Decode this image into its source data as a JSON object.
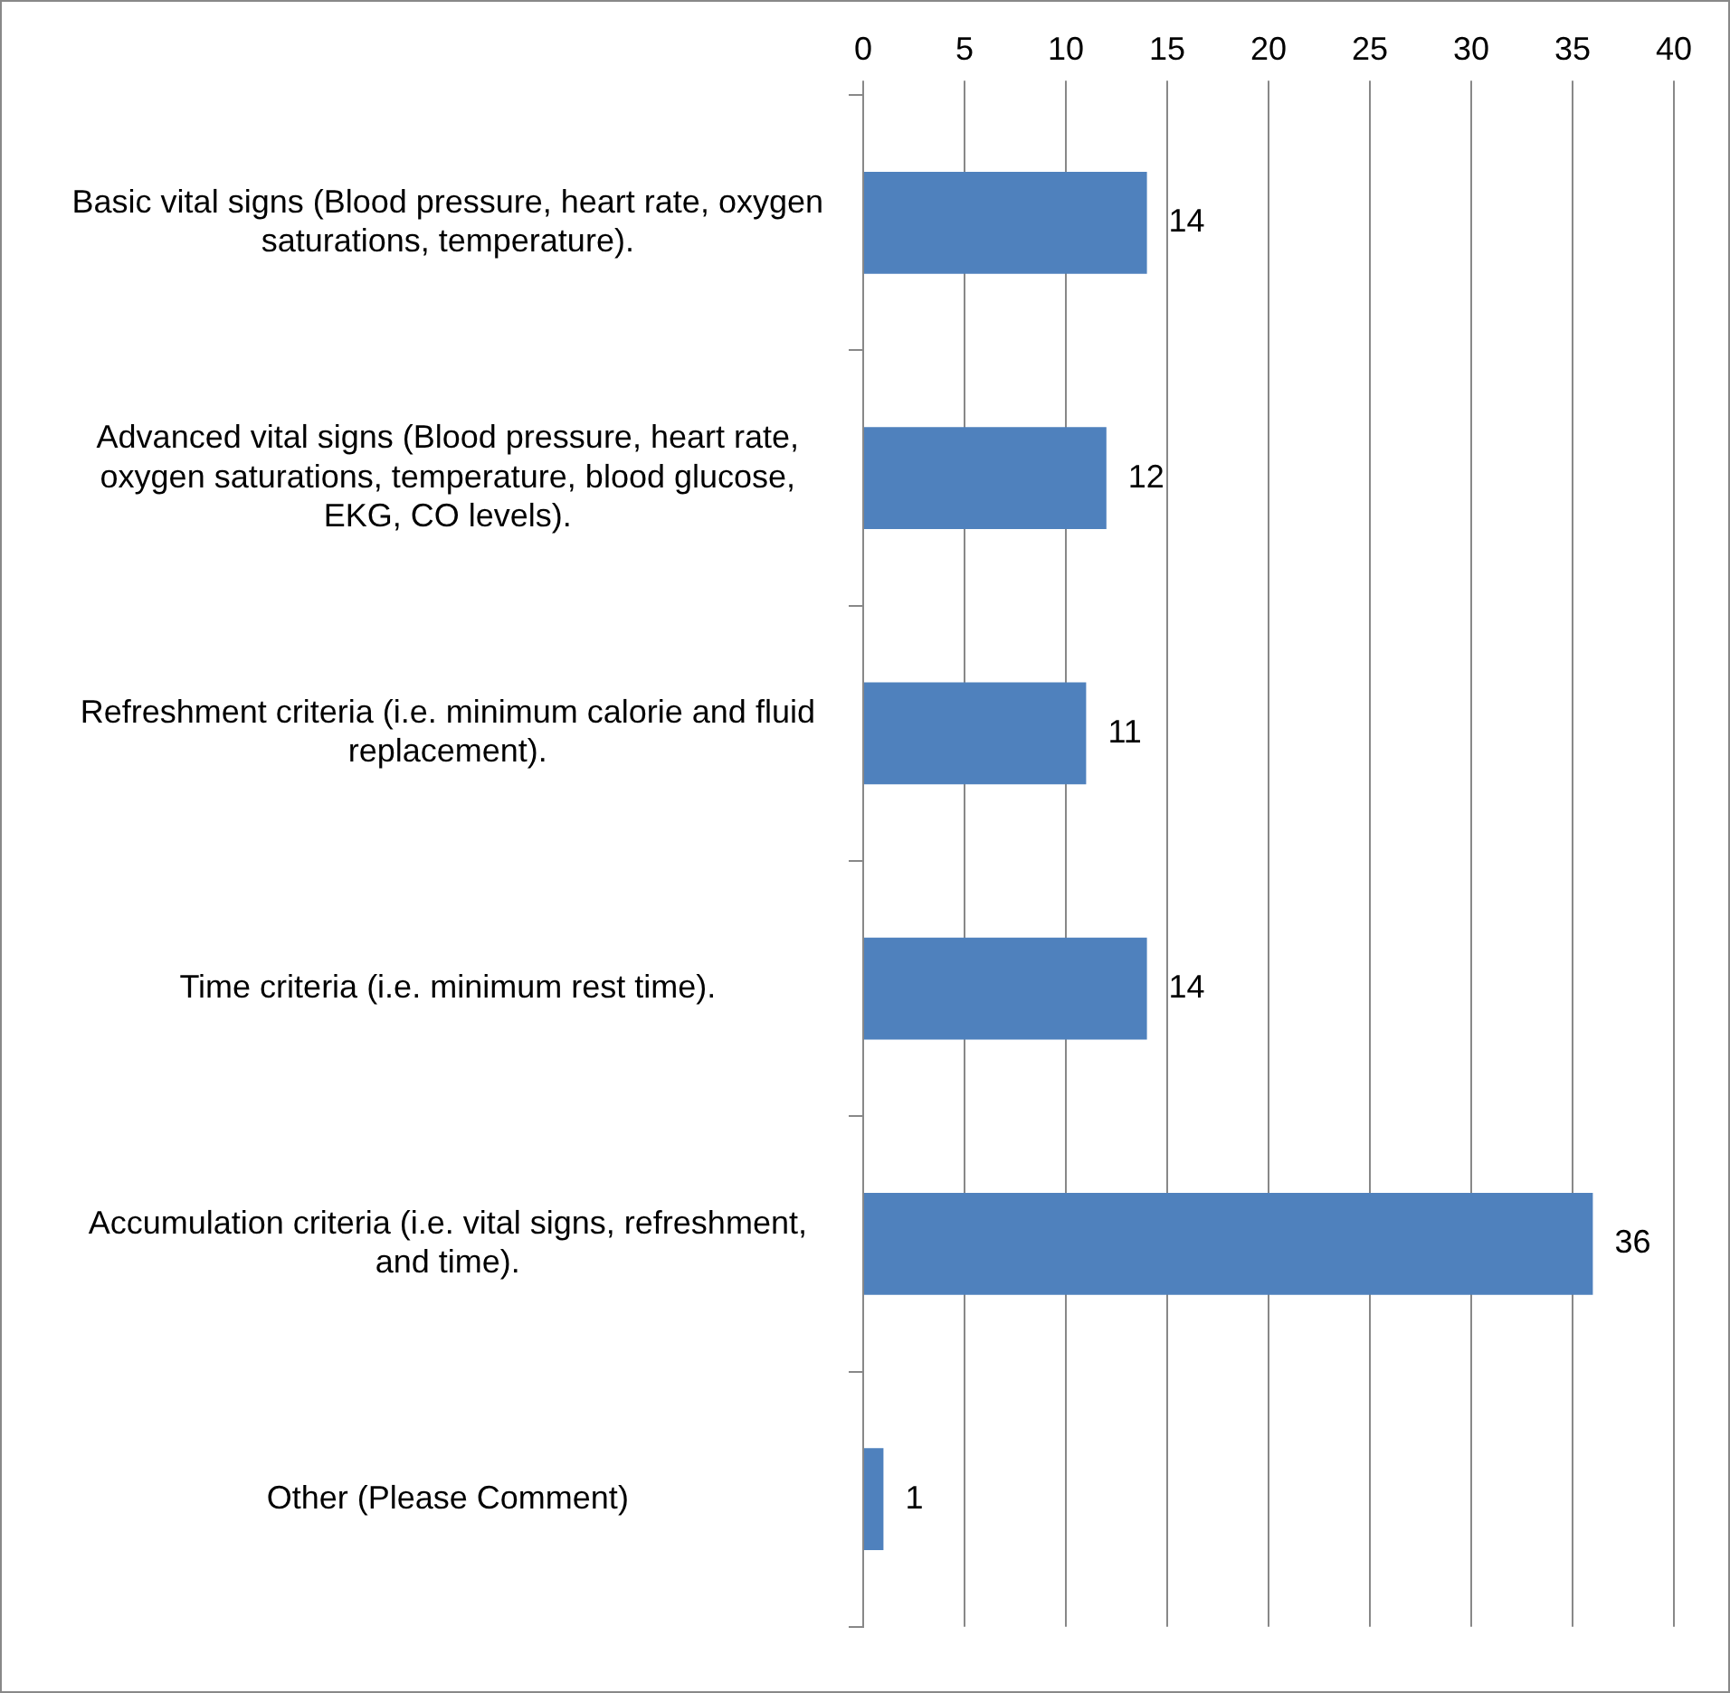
{
  "chart_data": {
    "type": "bar",
    "orientation": "horizontal",
    "categories": [
      "Basic vital signs (Blood pressure, heart rate, oxygen saturations, temperature).",
      "Advanced vital signs (Blood pressure, heart rate, oxygen saturations, temperature, blood glucose, EKG, CO levels).",
      "Refreshment criteria (i.e. minimum calorie and fluid replacement).",
      "Time criteria (i.e. minimum rest time).",
      "Accumulation criteria (i.e. vital signs, refreshment, and time).",
      "Other (Please Comment)"
    ],
    "values": [
      14,
      12,
      11,
      14,
      36,
      1
    ],
    "color": "#4f81bd",
    "xlim": [
      0,
      40
    ],
    "xticks": [
      0,
      5,
      10,
      15,
      20,
      25,
      30,
      35,
      40
    ],
    "grid": "x",
    "data_labels": true
  }
}
